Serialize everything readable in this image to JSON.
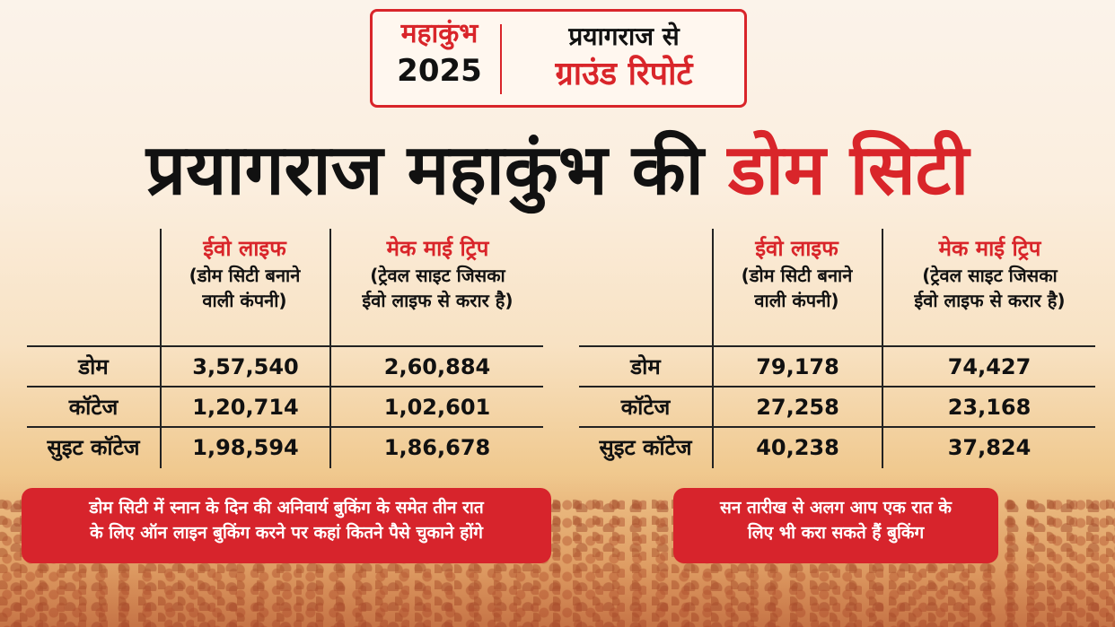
{
  "badge": {
    "event": "महाकुंभ",
    "year": "2025",
    "line1": "प्रयागराज से",
    "line2": "ग्राउंड रिपोर्ट"
  },
  "headline": {
    "part1": "प्रयागराज महाकुंभ की",
    "part2": "डोम सिटी"
  },
  "tables": [
    {
      "col1": {
        "brand": "ईवो लाइफ",
        "sub1": "(डोम सिटी बनाने",
        "sub2": "वाली कंपनी)"
      },
      "col2": {
        "brand": "मेक माई ट्रिप",
        "sub1": "(ट्रेवल साइट जिसका",
        "sub2": "ईवो लाइफ से करार है)"
      },
      "rows": [
        {
          "type": "डोम",
          "v1": "3,57,540",
          "v2": "2,60,884"
        },
        {
          "type": "कॉटेज",
          "v1": "1,20,714",
          "v2": "1,02,601"
        },
        {
          "type": "सुइट कॉटेज",
          "v1": "1,98,594",
          "v2": "1,86,678"
        }
      ]
    },
    {
      "col1": {
        "brand": "ईवो लाइफ",
        "sub1": "(डोम सिटी बनाने",
        "sub2": "वाली कंपनी)"
      },
      "col2": {
        "brand": "मेक माई ट्रिप",
        "sub1": "(ट्रेवल साइट जिसका",
        "sub2": "ईवो लाइफ से करार है)"
      },
      "rows": [
        {
          "type": "डोम",
          "v1": "79,178",
          "v2": "74,427"
        },
        {
          "type": "कॉटेज",
          "v1": "27,258",
          "v2": "23,168"
        },
        {
          "type": "सुइट कॉटेज",
          "v1": "40,238",
          "v2": "37,824"
        }
      ]
    }
  ],
  "notes": {
    "left1": "डोम सिटी में स्नान के दिन की अनिवार्य बुकिंग के समेत तीन रात",
    "left2": "के लिए ऑन लाइन बुकिंग करने पर कहां कितने पैसे चुकाने होंगे",
    "right1": "सन तारीख से अलग आप एक रात के",
    "right2": "लिए भी करा सकते हैं बुकिंग"
  },
  "colors": {
    "accent": "#d9252a",
    "text": "#111111"
  }
}
